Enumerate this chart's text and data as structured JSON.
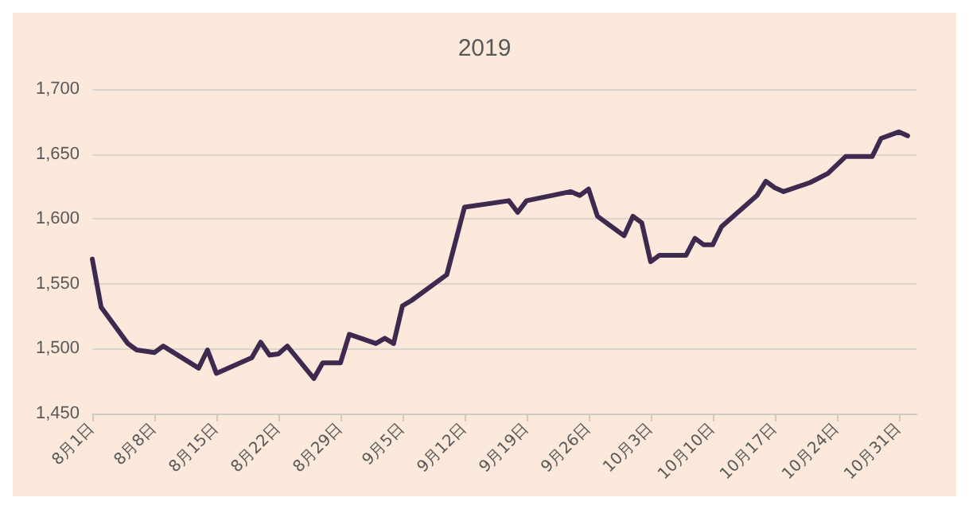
{
  "chart_data": {
    "type": "line",
    "title": "2019",
    "x": [
      "--08-01",
      "--08-02",
      "--08-05",
      "--08-06",
      "--08-08",
      "--08-09",
      "--08-13",
      "--08-14",
      "--08-15",
      "--08-19",
      "--08-20",
      "--08-21",
      "--08-22",
      "--08-23",
      "--08-26",
      "--08-27",
      "--08-28",
      "--08-29",
      "--08-30",
      "--09-02",
      "--09-03",
      "--09-04",
      "--09-05",
      "--09-06",
      "--09-10",
      "--09-11",
      "--09-12",
      "--09-17",
      "--09-18",
      "--09-19",
      "--09-24",
      "--09-25",
      "--09-26",
      "--09-27",
      "--09-30",
      "--10-01",
      "--10-02",
      "--10-03",
      "--10-04",
      "--10-07",
      "--10-08",
      "--10-09",
      "--10-10",
      "--10-11",
      "--10-15",
      "--10-16",
      "--10-17",
      "--10-18",
      "--10-21",
      "--10-23",
      "--10-25",
      "--10-28",
      "--10-29",
      "--10-31",
      "--11-01"
    ],
    "series": [
      {
        "color": "#3f2a4f",
        "values": [
          1569,
          1532,
          1504,
          1499,
          1497,
          1502,
          1485,
          1499,
          1481,
          1493,
          1505,
          1495,
          1496,
          1502,
          1477,
          1489,
          1489,
          1489,
          1511,
          1504,
          1508,
          1504,
          1533,
          1537,
          1557,
          1583,
          1609,
          1614,
          1605,
          1614,
          1621,
          1618,
          1623,
          1602,
          1587,
          1602,
          1597,
          1567,
          1572,
          1572,
          1585,
          1580,
          1580,
          1594,
          1618,
          1629,
          1624,
          1621,
          1628,
          1635,
          1648,
          1648,
          1662,
          1667,
          1664
        ]
      }
    ],
    "xlim": [
      "--08-01",
      "--11-02"
    ],
    "xticks": [
      {
        "value": "--08-01",
        "label": "8月1日"
      },
      {
        "value": "--08-08",
        "label": "8月8日"
      },
      {
        "value": "--08-15",
        "label": "8月15日"
      },
      {
        "value": "--08-22",
        "label": "8月22日"
      },
      {
        "value": "--08-29",
        "label": "8月29日"
      },
      {
        "value": "--09-05",
        "label": "9月5日"
      },
      {
        "value": "--09-12",
        "label": "9月12日"
      },
      {
        "value": "--09-19",
        "label": "9月19日"
      },
      {
        "value": "--09-26",
        "label": "9月26日"
      },
      {
        "value": "--10-03",
        "label": "10月3日"
      },
      {
        "value": "--10-10",
        "label": "10月10日"
      },
      {
        "value": "--10-17",
        "label": "10月17日"
      },
      {
        "value": "--10-24",
        "label": "10月24日"
      },
      {
        "value": "--10-31",
        "label": "10月31日"
      }
    ],
    "ylim": [
      1450,
      1700
    ],
    "yticks": [
      {
        "value": 1450,
        "label": "1,450"
      },
      {
        "value": 1500,
        "label": "1,500"
      },
      {
        "value": 1550,
        "label": "1,550"
      },
      {
        "value": 1600,
        "label": "1,600"
      },
      {
        "value": 1650,
        "label": "1,650"
      },
      {
        "value": 1700,
        "label": "1,700"
      }
    ],
    "grid": "y",
    "marker": "none",
    "line_style": "solid"
  }
}
